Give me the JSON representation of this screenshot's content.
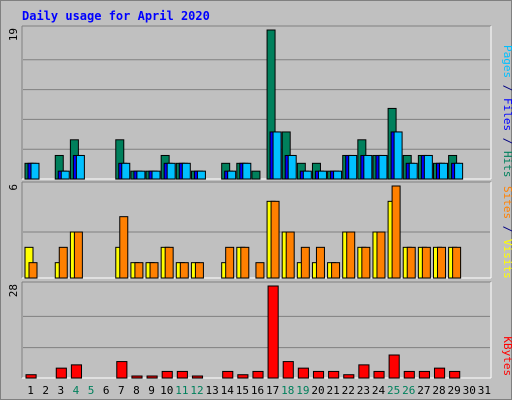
{
  "chart_data": {
    "type": "bar",
    "title": "Daily usage for April 2020",
    "categories": [
      "1",
      "2",
      "3",
      "4",
      "5",
      "6",
      "7",
      "8",
      "9",
      "10",
      "11",
      "12",
      "13",
      "14",
      "15",
      "16",
      "17",
      "18",
      "19",
      "20",
      "21",
      "22",
      "23",
      "24",
      "25",
      "26",
      "27",
      "28",
      "29",
      "30",
      "31"
    ],
    "weekend_days": [
      "4",
      "5",
      "11",
      "12",
      "18",
      "19",
      "25",
      "26"
    ],
    "panels": [
      {
        "name": "hits-files-pages",
        "ymax": 19,
        "ymax_label": "19",
        "axis_labels": [
          {
            "text": "Pages",
            "color": "#00c0ff"
          },
          {
            "text": " / ",
            "color": "#000080"
          },
          {
            "text": "Files",
            "color": "#0000ff"
          },
          {
            "text": " / ",
            "color": "#000080"
          },
          {
            "text": "Hits",
            "color": "#00805c"
          }
        ],
        "series": [
          {
            "name": "Hits",
            "color": "#00805c",
            "values": [
              2,
              0,
              3,
              5,
              0,
              0,
              5,
              1,
              1,
              3,
              2,
              1,
              0,
              2,
              2,
              1,
              19,
              6,
              2,
              2,
              1,
              3,
              5,
              3,
              9,
              3,
              3,
              2,
              3,
              0,
              0
            ]
          },
          {
            "name": "Files",
            "color": "#0000ff",
            "values": [
              2,
              0,
              1,
              3,
              0,
              0,
              2,
              1,
              1,
              2,
              2,
              1,
              0,
              1,
              2,
              0,
              6,
              3,
              1,
              1,
              1,
              3,
              3,
              3,
              6,
              2,
              3,
              2,
              2,
              0,
              0
            ]
          },
          {
            "name": "Pages",
            "color": "#00c0ff",
            "values": [
              2,
              0,
              1,
              3,
              0,
              0,
              2,
              1,
              1,
              2,
              2,
              1,
              0,
              1,
              2,
              0,
              6,
              3,
              1,
              1,
              1,
              3,
              3,
              3,
              6,
              2,
              3,
              2,
              2,
              0,
              0
            ]
          }
        ]
      },
      {
        "name": "visits-sites",
        "ymax": 6,
        "ymax_label": "6",
        "axis_labels": [
          {
            "text": "Sites",
            "color": "#ff8000"
          },
          {
            "text": " / ",
            "color": "#000080"
          },
          {
            "text": "Visits",
            "color": "#ffff00"
          }
        ],
        "series": [
          {
            "name": "Visits",
            "color": "#ffff00",
            "values": [
              2,
              0,
              1,
              3,
              0,
              0,
              2,
              1,
              1,
              2,
              1,
              1,
              0,
              1,
              2,
              0,
              5,
              3,
              1,
              1,
              1,
              3,
              2,
              3,
              5,
              2,
              2,
              2,
              2,
              0,
              0
            ]
          },
          {
            "name": "Sites",
            "color": "#ff8000",
            "values": [
              1,
              0,
              2,
              3,
              0,
              0,
              4,
              1,
              1,
              2,
              1,
              1,
              0,
              2,
              2,
              1,
              5,
              3,
              2,
              2,
              1,
              3,
              2,
              3,
              6,
              2,
              2,
              2,
              2,
              0,
              0
            ]
          }
        ]
      },
      {
        "name": "kbytes",
        "ymax": 28,
        "ymax_label": "28",
        "axis_labels": [
          {
            "text": "KBytes",
            "color": "#ff0000"
          }
        ],
        "series": [
          {
            "name": "KBytes",
            "color": "#ff0000",
            "values": [
              1,
              0,
              3,
              4,
              0,
              0,
              5,
              0.6,
              0.6,
              2,
              2,
              0.4,
              0,
              2,
              1,
              2,
              28,
              5,
              3,
              2,
              2,
              1,
              4,
              2,
              7,
              2,
              2,
              3,
              2,
              0,
              0
            ]
          }
        ]
      }
    ]
  }
}
